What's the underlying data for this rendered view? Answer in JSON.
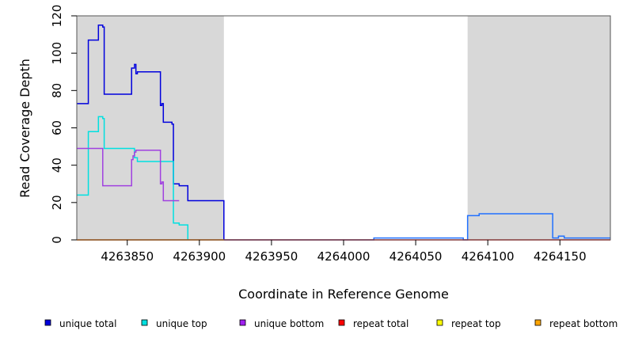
{
  "chart_data": {
    "type": "line",
    "xlabel": "Coordinate in Reference Genome",
    "ylabel": "Read Coverage Depth",
    "xlim": [
      4263815,
      4264185
    ],
    "ylim": [
      0,
      120
    ],
    "x_ticks": [
      4263850,
      4263900,
      4263950,
      4264000,
      4264050,
      4264100,
      4264150
    ],
    "x_tick_labels": [
      "4263850",
      "4263900",
      "4263950",
      "4264000",
      "4264050",
      "4264100",
      "4264150"
    ],
    "y_ticks": [
      0,
      20,
      40,
      60,
      80,
      100,
      120
    ],
    "y_tick_labels": [
      "0",
      "20",
      "40",
      "60",
      "80",
      "100",
      "120"
    ],
    "shaded_regions": [
      {
        "x0": 4263815,
        "x1": 4263917,
        "color": "#d8d8d8"
      },
      {
        "x0": 4264086,
        "x1": 4264185,
        "color": "#d8d8d8"
      }
    ],
    "series": [
      {
        "name": "unique total",
        "color": "#0000dd",
        "x": [
          4263815,
          4263823,
          4263823,
          4263830,
          4263830,
          4263833,
          4263833,
          4263834,
          4263834,
          4263853,
          4263853,
          4263855,
          4263855,
          4263856,
          4263856,
          4263857,
          4263857,
          4263873,
          4263873,
          4263874,
          4263874,
          4263875,
          4263875,
          4263881,
          4263881,
          4263882,
          4263882,
          4263886,
          4263886,
          4263892,
          4263892,
          4263917,
          4263917
        ],
        "y": [
          73,
          73,
          107,
          107,
          115,
          115,
          114,
          114,
          78,
          78,
          92,
          92,
          94,
          94,
          89,
          89,
          90,
          90,
          72,
          72,
          73,
          73,
          63,
          63,
          62,
          62,
          30,
          30,
          29,
          29,
          21,
          21,
          0
        ]
      },
      {
        "name": "unique top",
        "color": "#00e0e0",
        "x": [
          4263815,
          4263823,
          4263823,
          4263830,
          4263830,
          4263833,
          4263833,
          4263834,
          4263834,
          4263855,
          4263855,
          4263857,
          4263857,
          4263882,
          4263882,
          4263886,
          4263886,
          4263892,
          4263892
        ],
        "y": [
          24,
          24,
          58,
          58,
          66,
          66,
          65,
          65,
          49,
          49,
          44,
          44,
          42,
          42,
          9,
          9,
          8,
          8,
          0
        ]
      },
      {
        "name": "unique bottom",
        "color": "#a040e0",
        "x": [
          4263815,
          4263833,
          4263833,
          4263853,
          4263853,
          4263854,
          4263854,
          4263855,
          4263855,
          4263856,
          4263856,
          4263873,
          4263873,
          4263874,
          4263874,
          4263875,
          4263875,
          4263886
        ],
        "y": [
          49,
          49,
          29,
          29,
          43,
          43,
          45,
          45,
          47,
          47,
          48,
          48,
          30,
          30,
          31,
          31,
          21,
          21
        ]
      },
      {
        "name": "unique total (right window)",
        "color": "#2070ff",
        "x": [
          4263917,
          4264021,
          4264021,
          4264083,
          4264083,
          4264086,
          4264086,
          4264094,
          4264094,
          4264145,
          4264145,
          4264149,
          4264149,
          4264153,
          4264153,
          4264185
        ],
        "y": [
          0,
          0,
          1,
          1,
          0,
          0,
          13,
          13,
          14,
          14,
          1,
          1,
          2,
          2,
          1,
          1
        ]
      },
      {
        "name": "repeat total",
        "color": "#e00000",
        "x": [
          4263815,
          4264185
        ],
        "y": [
          0,
          0
        ]
      },
      {
        "name": "repeat bottom",
        "color": "#f0a000",
        "x": [
          4263815,
          4263917
        ],
        "y": [
          0,
          0
        ]
      }
    ],
    "legend": {
      "placement": "bottom",
      "items": [
        {
          "label": "unique total",
          "color": "#0000dd"
        },
        {
          "label": "unique top",
          "color": "#00e0e0"
        },
        {
          "label": "unique bottom",
          "color": "#a020f0"
        },
        {
          "label": "repeat total",
          "color": "#ff0000"
        },
        {
          "label": "repeat top",
          "color": "#ffff00"
        },
        {
          "label": "repeat bottom",
          "color": "#ffa500"
        }
      ]
    }
  }
}
